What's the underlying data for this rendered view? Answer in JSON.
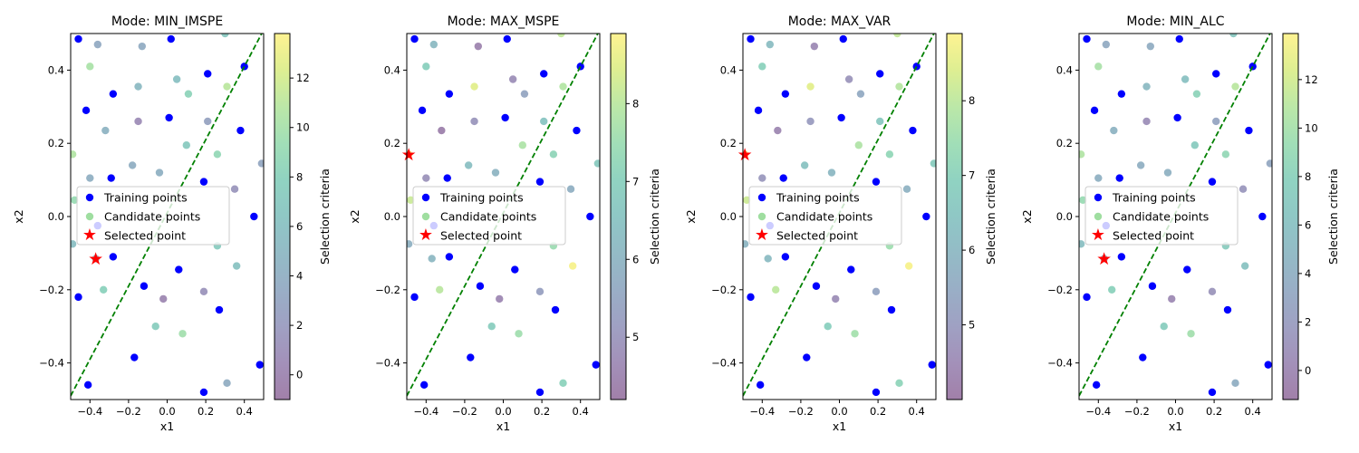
{
  "chart_data": [
    {
      "type": "scatter",
      "title": "Mode: MIN_IMSPE",
      "xlabel": "x1",
      "ylabel": "x2",
      "xlim": [
        -0.5,
        0.5
      ],
      "ylim": [
        -0.5,
        0.5
      ],
      "xticks": [
        -0.4,
        -0.2,
        0.0,
        0.2,
        0.4
      ],
      "yticks": [
        -0.4,
        -0.2,
        0.0,
        0.2,
        0.4
      ],
      "xtick_labels": [
        "−0.4",
        "−0.2",
        "0.0",
        "0.2",
        "0.4"
      ],
      "ytick_labels": [
        "−0.4",
        "−0.2",
        "0.0",
        "0.2",
        "0.4"
      ],
      "colorbar": {
        "label": "Selection criteria",
        "min": -1.0,
        "max": 13.8,
        "ticks": [
          0,
          2,
          4,
          6,
          8,
          10,
          12
        ]
      },
      "selected": [
        -0.37,
        -0.115
      ],
      "candidate_values": [
        10.6,
        3.5,
        3.8,
        6.9,
        10.2,
        6.0,
        5.2,
        8.3,
        11.0,
        4.2,
        4.5,
        7.2,
        0.7,
        2.8,
        8.8,
        4.0,
        4.1,
        1.5,
        3.2,
        9.2,
        7.4,
        4.6,
        0.2,
        1.3,
        8.0,
        7.5,
        9.8,
        6.2,
        5.8,
        3.9
      ]
    },
    {
      "type": "scatter",
      "title": "Mode: MAX_MSPE",
      "xlabel": "x1",
      "ylabel": "x2",
      "xlim": [
        -0.5,
        0.5
      ],
      "ylim": [
        -0.5,
        0.5
      ],
      "xticks": [
        -0.4,
        -0.2,
        0.0,
        0.2,
        0.4
      ],
      "yticks": [
        -0.4,
        -0.2,
        0.0,
        0.2,
        0.4
      ],
      "xtick_labels": [
        "−0.4",
        "−0.2",
        "0.0",
        "0.2",
        "0.4"
      ],
      "ytick_labels": [
        "−0.4",
        "−0.2",
        "0.0",
        "0.2",
        "0.4"
      ],
      "colorbar": {
        "label": "Selection criteria",
        "min": 4.2,
        "max": 8.9,
        "ticks": [
          5,
          6,
          7,
          8
        ]
      },
      "selected": [
        -0.49,
        0.17
      ],
      "candidate_values": [
        8.7,
        6.2,
        4.5,
        8.1,
        7.0,
        4.8,
        8.5,
        5.5,
        7.9,
        6.0,
        4.4,
        7.8,
        5.0,
        6.6,
        7.2,
        6.4,
        4.9,
        5.8,
        6.8,
        8.2,
        7.5,
        6.1,
        4.6,
        5.3,
        8.0,
        6.9,
        7.6,
        8.8,
        5.9,
        7.1
      ]
    },
    {
      "type": "scatter",
      "title": "Mode: MAX_VAR",
      "xlabel": "x1",
      "ylabel": "x2",
      "xlim": [
        -0.5,
        0.5
      ],
      "ylim": [
        -0.5,
        0.5
      ],
      "xticks": [
        -0.4,
        -0.2,
        0.0,
        0.2,
        0.4
      ],
      "yticks": [
        -0.4,
        -0.2,
        0.0,
        0.2,
        0.4
      ],
      "xtick_labels": [
        "−0.4",
        "−0.2",
        "0.0",
        "0.2",
        "0.4"
      ],
      "ytick_labels": [
        "−0.4",
        "−0.2",
        "0.0",
        "0.2",
        "0.4"
      ],
      "colorbar": {
        "label": "Selection criteria",
        "min": 4.0,
        "max": 8.9,
        "ticks": [
          5,
          6,
          7,
          8
        ]
      },
      "selected": [
        -0.49,
        0.17
      ],
      "candidate_values": [
        8.7,
        6.2,
        4.5,
        8.1,
        7.0,
        4.8,
        8.5,
        5.5,
        7.9,
        6.0,
        4.4,
        7.8,
        5.0,
        6.6,
        7.2,
        6.4,
        4.9,
        5.8,
        6.8,
        8.2,
        7.5,
        6.1,
        4.6,
        5.3,
        8.0,
        6.9,
        7.6,
        8.8,
        5.9,
        7.1
      ]
    },
    {
      "type": "scatter",
      "title": "Mode: MIN_ALC",
      "xlabel": "x1",
      "ylabel": "x2",
      "xlim": [
        -0.5,
        0.5
      ],
      "ylim": [
        -0.5,
        0.5
      ],
      "xticks": [
        -0.4,
        -0.2,
        0.0,
        0.2,
        0.4
      ],
      "yticks": [
        -0.4,
        -0.2,
        0.0,
        0.2,
        0.4
      ],
      "xtick_labels": [
        "−0.4",
        "−0.2",
        "0.0",
        "0.2",
        "0.4"
      ],
      "ytick_labels": [
        "−0.4",
        "−0.2",
        "0.0",
        "0.2",
        "0.4"
      ],
      "colorbar": {
        "label": "Selection criteria",
        "min": -1.2,
        "max": 13.9,
        "ticks": [
          0,
          2,
          4,
          6,
          8,
          10,
          12
        ]
      },
      "selected": [
        -0.37,
        -0.115
      ],
      "candidate_values": [
        10.6,
        3.5,
        3.8,
        6.9,
        10.2,
        6.0,
        5.2,
        8.3,
        11.0,
        4.2,
        4.5,
        7.2,
        0.7,
        2.8,
        8.8,
        4.0,
        4.1,
        1.5,
        3.2,
        9.2,
        7.4,
        4.6,
        0.2,
        1.3,
        8.0,
        7.5,
        9.8,
        6.2,
        5.8,
        3.9
      ]
    }
  ],
  "shared": {
    "training_points": [
      [
        -0.46,
        0.485
      ],
      [
        0.02,
        0.485
      ],
      [
        -0.28,
        0.335
      ],
      [
        0.21,
        0.39
      ],
      [
        0.4,
        0.41
      ],
      [
        -0.42,
        0.29
      ],
      [
        0.01,
        0.27
      ],
      [
        0.38,
        0.235
      ],
      [
        -0.29,
        0.105
      ],
      [
        0.19,
        0.095
      ],
      [
        -0.36,
        -0.025
      ],
      [
        0.45,
        0.0
      ],
      [
        -0.28,
        -0.11
      ],
      [
        0.06,
        -0.145
      ],
      [
        -0.12,
        -0.19
      ],
      [
        -0.46,
        -0.22
      ],
      [
        0.27,
        -0.255
      ],
      [
        -0.17,
        -0.385
      ],
      [
        0.48,
        -0.405
      ],
      [
        -0.41,
        -0.46
      ],
      [
        0.19,
        -0.48
      ]
    ],
    "candidate_points": [
      [
        -0.49,
        0.17
      ],
      [
        -0.36,
        0.47
      ],
      [
        -0.13,
        0.465
      ],
      [
        0.3,
        0.5
      ],
      [
        -0.4,
        0.41
      ],
      [
        0.05,
        0.375
      ],
      [
        -0.15,
        0.355
      ],
      [
        0.11,
        0.335
      ],
      [
        0.31,
        0.355
      ],
      [
        -0.04,
        0.12
      ],
      [
        -0.32,
        0.235
      ],
      [
        0.1,
        0.195
      ],
      [
        -0.15,
        0.26
      ],
      [
        0.21,
        0.26
      ],
      [
        0.26,
        0.17
      ],
      [
        -0.18,
        0.14
      ],
      [
        -0.4,
        0.105
      ],
      [
        0.35,
        0.075
      ],
      [
        0.49,
        0.145
      ],
      [
        -0.48,
        0.045
      ],
      [
        0.26,
        -0.08
      ],
      [
        -0.37,
        -0.115
      ],
      [
        -0.02,
        -0.225
      ],
      [
        0.19,
        -0.205
      ],
      [
        -0.33,
        -0.2
      ],
      [
        -0.06,
        -0.3
      ],
      [
        0.08,
        -0.32
      ],
      [
        0.36,
        -0.135
      ],
      [
        -0.49,
        -0.075
      ],
      [
        0.31,
        -0.455
      ]
    ],
    "boundary_line": [
      [
        -0.5,
        -0.49
      ],
      [
        0.5,
        0.51
      ]
    ]
  },
  "legend": {
    "training_label": "Training points",
    "candidate_label": "Candidate points",
    "selected_label": "Selected point",
    "placement": "center-left"
  },
  "colors": {
    "training": "#0000ff",
    "selected": "#ff0000",
    "boundary": "#008000",
    "colormap": "viridis"
  }
}
